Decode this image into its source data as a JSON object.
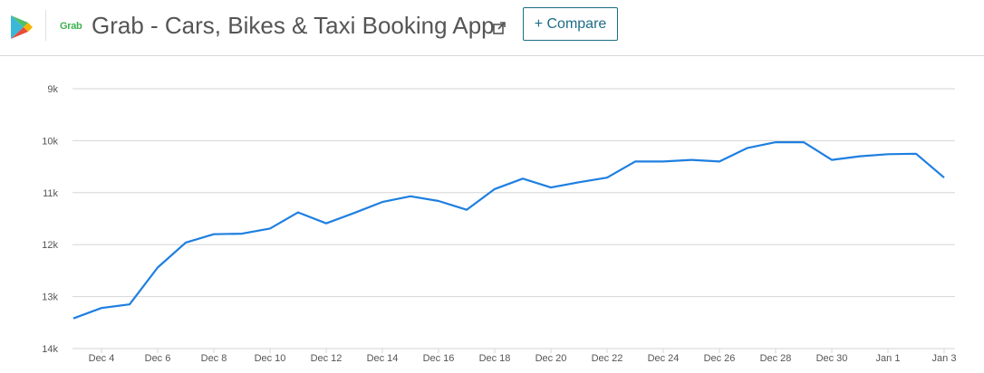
{
  "header": {
    "brand_logo": "Grab",
    "app_title": "Grab - Cars, Bikes & Taxi Booking App",
    "compare_label": "+ Compare"
  },
  "colors": {
    "line": "#1e7fe0",
    "grid": "#d6d6d6",
    "compare": "#1c6d86",
    "brand": "#3fb34f"
  },
  "chart_data": {
    "type": "line",
    "y_reversed": true,
    "ylim": [
      9000,
      14000
    ],
    "y_ticks": [
      9000,
      10000,
      11000,
      12000,
      13000,
      14000
    ],
    "y_tick_labels": [
      "9k",
      "10k",
      "11k",
      "12k",
      "13k",
      "14k"
    ],
    "grid": true,
    "x_labels": [
      "Dec 4",
      "Dec 6",
      "Dec 8",
      "Dec 10",
      "Dec 12",
      "Dec 14",
      "Dec 16",
      "Dec 18",
      "Dec 20",
      "Dec 22",
      "Dec 24",
      "Dec 26",
      "Dec 28",
      "Dec 30",
      "Jan 1",
      "Jan 3"
    ],
    "series": [
      {
        "x": [
          "Dec 3",
          "Dec 4",
          "Dec 5",
          "Dec 6",
          "Dec 7",
          "Dec 8",
          "Dec 9",
          "Dec 10",
          "Dec 11",
          "Dec 12",
          "Dec 13",
          "Dec 14",
          "Dec 15",
          "Dec 16",
          "Dec 17",
          "Dec 18",
          "Dec 19",
          "Dec 20",
          "Dec 21",
          "Dec 22",
          "Dec 23",
          "Dec 24",
          "Dec 25",
          "Dec 26",
          "Dec 27",
          "Dec 28",
          "Dec 29",
          "Dec 30",
          "Dec 31",
          "Jan 1",
          "Jan 2",
          "Jan 3"
        ],
        "values": [
          13420,
          13220,
          13150,
          12440,
          11960,
          11800,
          11790,
          11690,
          11380,
          11590,
          11390,
          11180,
          11070,
          11160,
          11330,
          10930,
          10730,
          10900,
          10800,
          10710,
          10400,
          10400,
          10370,
          10400,
          10140,
          10030,
          10030,
          10370,
          10300,
          10260,
          10250,
          10710
        ]
      }
    ]
  }
}
